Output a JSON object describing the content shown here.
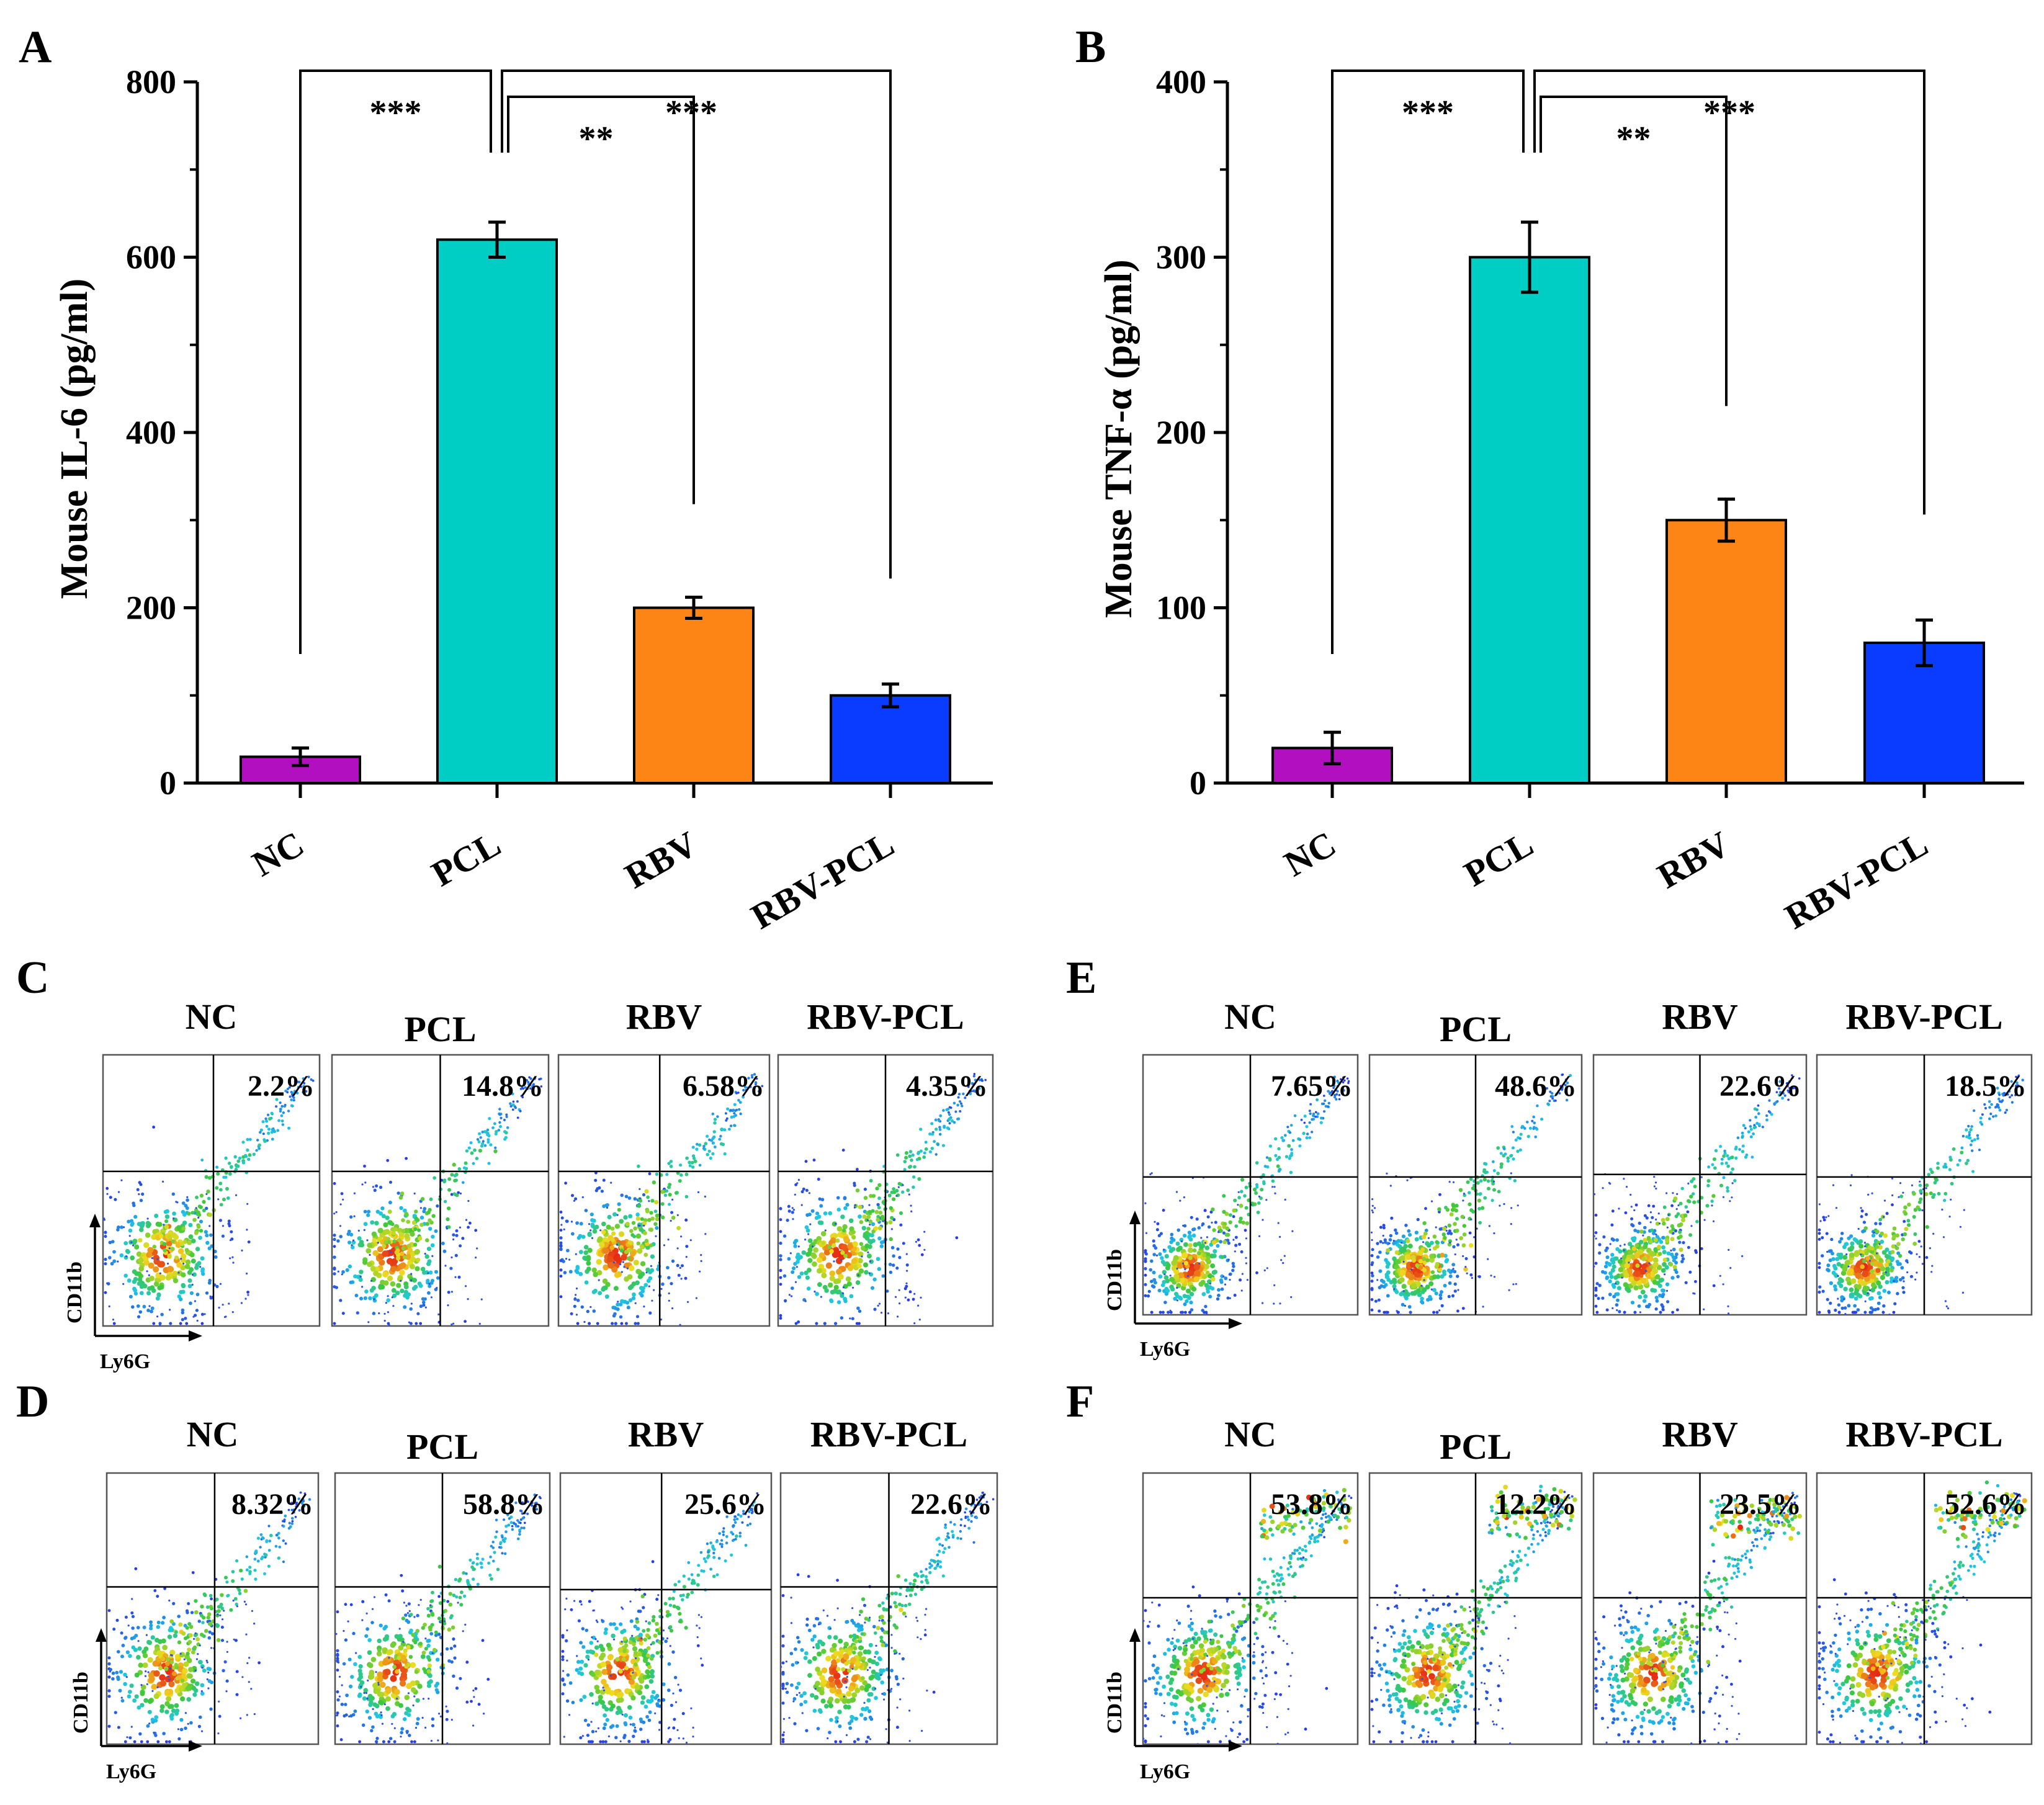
{
  "colors": {
    "NC": "#b10fc0",
    "PCL": "#00cdc4",
    "RBV": "#fd8515",
    "RBV-PCL": "#0a3cff",
    "axis": "#000000",
    "background": "#ffffff"
  },
  "chart_data": [
    {
      "panel": "A",
      "type": "bar",
      "categories": [
        "NC",
        "PCL",
        "RBV",
        "RBV-PCL"
      ],
      "values": [
        30,
        620,
        200,
        100
      ],
      "errors": [
        10,
        20,
        12,
        13
      ],
      "title": "",
      "xlabel": "",
      "ylabel": "Mouse IL-6 (pg/ml)",
      "ylim": [
        0,
        800
      ],
      "yticks": [
        0,
        200,
        400,
        600,
        800
      ],
      "grid": false,
      "significance": [
        {
          "from": "NC",
          "to": "PCL",
          "label": "***"
        },
        {
          "from": "PCL",
          "to": "RBV",
          "label": "**"
        },
        {
          "from": "PCL",
          "to": "RBV-PCL",
          "label": "***"
        }
      ]
    },
    {
      "panel": "B",
      "type": "bar",
      "categories": [
        "NC",
        "PCL",
        "RBV",
        "RBV-PCL"
      ],
      "values": [
        20,
        300,
        150,
        80
      ],
      "errors": [
        9,
        20,
        12,
        13
      ],
      "title": "",
      "xlabel": "",
      "ylabel": "Mouse TNF-α (pg/ml)",
      "ylim": [
        0,
        400
      ],
      "yticks": [
        0,
        100,
        200,
        300,
        400
      ],
      "grid": false,
      "significance": [
        {
          "from": "NC",
          "to": "PCL",
          "label": "***"
        },
        {
          "from": "PCL",
          "to": "RBV",
          "label": "**"
        },
        {
          "from": "PCL",
          "to": "RBV-PCL",
          "label": "***"
        }
      ]
    },
    {
      "panel": "C",
      "type": "scatter",
      "groups": [
        "NC",
        "PCL",
        "RBV",
        "RBV-PCL"
      ],
      "quadrant_percentages": [
        "2.2%",
        "14.8%",
        "6.58%",
        "4.35%"
      ],
      "xlabel": "Ly6G",
      "ylabel": "CD11b"
    },
    {
      "panel": "D",
      "type": "scatter",
      "groups": [
        "NC",
        "PCL",
        "RBV",
        "RBV-PCL"
      ],
      "quadrant_percentages": [
        "8.32%",
        "58.8%",
        "25.6%",
        "22.6%"
      ],
      "xlabel": "Ly6G",
      "ylabel": "CD11b"
    },
    {
      "panel": "E",
      "type": "scatter",
      "groups": [
        "NC",
        "PCL",
        "RBV",
        "RBV-PCL"
      ],
      "quadrant_percentages": [
        "7.65%",
        "48.6%",
        "22.6%",
        "18.5%"
      ],
      "xlabel": "Ly6G",
      "ylabel": "CD11b"
    },
    {
      "panel": "F",
      "type": "scatter",
      "groups": [
        "NC",
        "PCL",
        "RBV",
        "RBV-PCL"
      ],
      "quadrant_percentages": [
        "53.8%",
        "12.2%",
        "23.5%",
        "52.6%"
      ],
      "xlabel": "Ly6G",
      "ylabel": "CD11b"
    }
  ]
}
